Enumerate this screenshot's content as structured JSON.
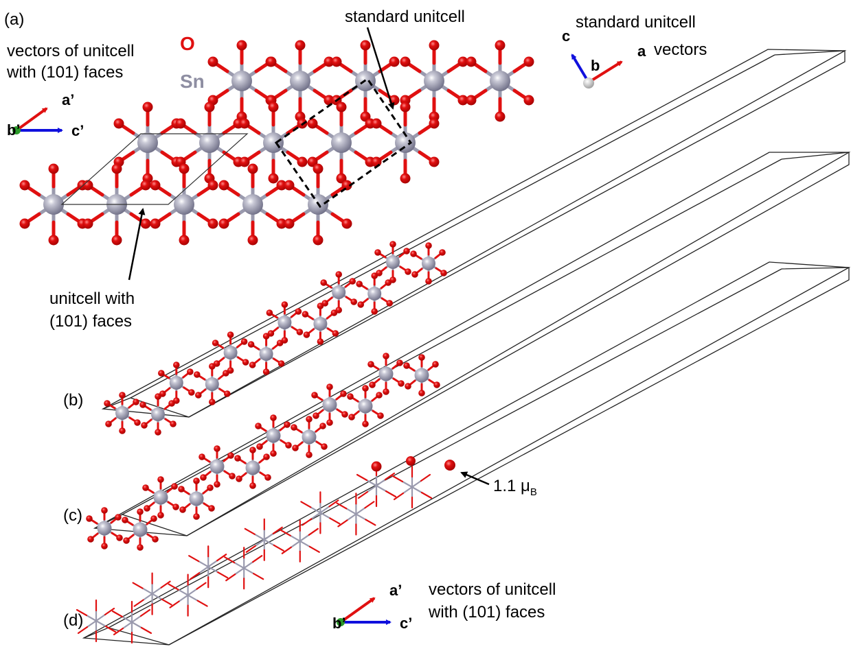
{
  "colors": {
    "oxygen": "#e01010",
    "tin": "#8e8ea2",
    "axis_a": "#e01010",
    "axis_b": "#2a9a2a",
    "axis_c": "#1010dd",
    "cell_line": "#222222"
  },
  "panel_a": {
    "label": "(a)",
    "element_o": "O",
    "element_sn": "Sn",
    "left_vectors_title_line1": "vectors of unitcell",
    "left_vectors_title_line2": "with (101) faces",
    "axis_a_prime": "a’",
    "axis_b_prime": "b’",
    "axis_c_prime": "c’",
    "standard_unitcell": "standard unitcell",
    "standard_vectors_line1": "standard unitcell",
    "standard_vectors_line2": "vectors",
    "axis_a": "a",
    "axis_b": "b",
    "axis_c": "c",
    "unitcell_101_line1": "unitcell with",
    "unitcell_101_line2": "(101) faces"
  },
  "panel_b": {
    "label": "(b)"
  },
  "panel_c": {
    "label": "(c)"
  },
  "panel_d": {
    "label": "(d)",
    "moment_value": "1.1 μ",
    "moment_subscript": "B",
    "axis_a_prime": "a’",
    "axis_b_prime": "b’",
    "axis_c_prime": "c’",
    "vectors_line1": "vectors of unitcell",
    "vectors_line2": "with (101) faces"
  }
}
